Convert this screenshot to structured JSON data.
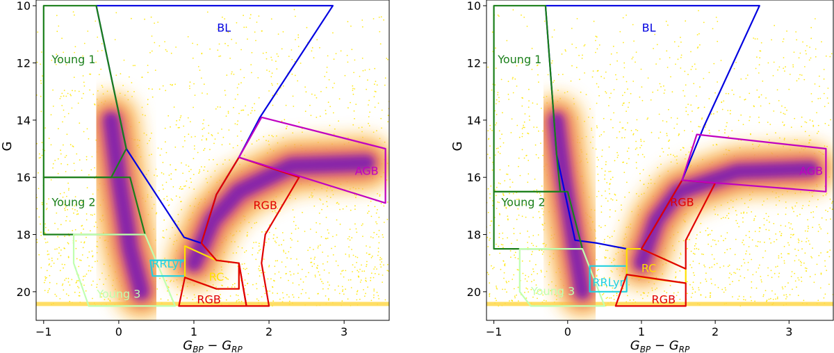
{
  "chart_data": [
    {
      "type": "scatter",
      "subtype": "density color-magnitude diagram with region polygons",
      "xlabel_main": "G",
      "xlabel_sub1": "BP",
      "xlabel_mid": " − G",
      "xlabel_sub2": "RP",
      "ylabel": "G",
      "xlim": [
        -1.1,
        3.6
      ],
      "ylim": [
        21.0,
        9.8
      ],
      "y_inverted": true,
      "xticks": [
        -1,
        0,
        1,
        2,
        3
      ],
      "yticks": [
        10,
        12,
        14,
        16,
        18,
        20
      ],
      "density_clouds": [
        {
          "name": "upper-main-sequence",
          "points": [
            [
              -0.1,
              14.0
            ],
            [
              0.0,
              16.0
            ],
            [
              0.15,
              18.5
            ],
            [
              0.3,
              20.0
            ]
          ],
          "width": 0.35
        },
        {
          "name": "giant-branch",
          "points": [
            [
              1.0,
              19.0
            ],
            [
              1.25,
              17.5
            ],
            [
              1.6,
              16.5
            ],
            [
              2.3,
              15.6
            ],
            [
              3.3,
              15.5
            ]
          ],
          "width": 0.35
        }
      ],
      "regions": [
        {
          "name": "BL",
          "color": "#0000e0",
          "label_pos": [
            1.4,
            10.8
          ],
          "polygon": [
            [
              -0.3,
              10.0
            ],
            [
              2.85,
              10.0
            ],
            [
              1.88,
              13.9
            ],
            [
              1.6,
              15.3
            ],
            [
              1.3,
              16.6
            ],
            [
              1.1,
              18.3
            ],
            [
              0.87,
              18.1
            ],
            [
              0.1,
              15.0
            ],
            [
              -0.3,
              10.0
            ]
          ]
        },
        {
          "name": "Young 1",
          "color": "#1a7f1a",
          "label_pos": [
            -0.6,
            11.9
          ],
          "polygon": [
            [
              -1.0,
              10.0
            ],
            [
              -0.3,
              10.0
            ],
            [
              0.1,
              15.0
            ],
            [
              -0.1,
              16.0
            ],
            [
              -1.0,
              16.0
            ]
          ]
        },
        {
          "name": "Young 2",
          "color": "#1a7f1a",
          "label_pos": [
            -0.6,
            16.9
          ],
          "polygon": [
            [
              -1.0,
              16.0
            ],
            [
              0.15,
              16.0
            ],
            [
              0.35,
              18.0
            ],
            [
              -1.0,
              18.0
            ]
          ]
        },
        {
          "name": "Young 3",
          "color": "#c0ffb0",
          "label_pos": [
            0.0,
            20.1
          ],
          "polygon": [
            [
              -0.6,
              18.0
            ],
            [
              0.35,
              18.0
            ],
            [
              0.75,
              20.5
            ],
            [
              -0.4,
              20.5
            ],
            [
              -0.6,
              19.0
            ]
          ]
        },
        {
          "name": "RRLyr",
          "color": "#20d0e0",
          "label_pos": [
            0.65,
            19.05
          ],
          "polygon": [
            [
              0.42,
              18.9
            ],
            [
              0.88,
              18.9
            ],
            [
              0.88,
              19.45
            ],
            [
              0.45,
              19.45
            ]
          ]
        },
        {
          "name": "RC",
          "color": "#ffe000",
          "label_pos": [
            1.3,
            19.5
          ],
          "polygon": [
            [
              0.88,
              18.4
            ],
            [
              1.3,
              18.9
            ],
            [
              1.6,
              19.0
            ],
            [
              1.6,
              19.9
            ],
            [
              1.3,
              19.9
            ],
            [
              0.88,
              19.5
            ]
          ]
        },
        {
          "name": "RGB",
          "color": "#e00000",
          "label_pos": [
            1.2,
            20.3
          ],
          "polygon": [
            [
              0.88,
              19.5
            ],
            [
              1.3,
              19.9
            ],
            [
              1.6,
              19.9
            ],
            [
              1.6,
              19.0
            ],
            [
              1.7,
              20.5
            ],
            [
              0.8,
              20.5
            ]
          ]
        },
        {
          "name": "RGB",
          "color": "#e00000",
          "label_pos": [
            1.95,
            17.0
          ],
          "polygon": [
            [
              1.1,
              18.3
            ],
            [
              1.3,
              16.6
            ],
            [
              1.6,
              15.3
            ],
            [
              2.4,
              16.0
            ],
            [
              1.95,
              18.0
            ],
            [
              1.9,
              19.0
            ],
            [
              2.0,
              20.5
            ],
            [
              1.7,
              20.5
            ],
            [
              1.6,
              19.0
            ],
            [
              1.3,
              18.9
            ]
          ]
        },
        {
          "name": "AGB",
          "color": "#c000c0",
          "label_pos": [
            3.3,
            15.8
          ],
          "polygon": [
            [
              1.6,
              15.3
            ],
            [
              1.9,
              13.9
            ],
            [
              3.55,
              15.0
            ],
            [
              3.55,
              16.9
            ]
          ]
        }
      ]
    },
    {
      "type": "scatter",
      "subtype": "density color-magnitude diagram with region polygons",
      "xlabel_main": "G",
      "xlabel_sub1": "BP",
      "xlabel_mid": " − G",
      "xlabel_sub2": "RP",
      "ylabel": "G",
      "xlim": [
        -1.1,
        3.6
      ],
      "ylim": [
        21.0,
        9.8
      ],
      "y_inverted": true,
      "xticks": [
        -1,
        0,
        1,
        2,
        3
      ],
      "yticks": [
        10,
        12,
        14,
        16,
        18,
        20
      ],
      "density_clouds": [
        {
          "name": "upper-main-sequence",
          "points": [
            [
              -0.15,
              14.0
            ],
            [
              -0.05,
              16.0
            ],
            [
              0.1,
              18.5
            ],
            [
              0.2,
              20.0
            ]
          ],
          "width": 0.33
        },
        {
          "name": "giant-branch",
          "points": [
            [
              1.0,
              19.0
            ],
            [
              1.2,
              17.5
            ],
            [
              1.5,
              16.5
            ],
            [
              2.3,
              15.8
            ],
            [
              3.3,
              15.7
            ]
          ],
          "width": 0.33
        }
      ],
      "regions": [
        {
          "name": "BL",
          "color": "#0000e0",
          "label_pos": [
            1.1,
            10.8
          ],
          "polygon": [
            [
              -0.3,
              10.0
            ],
            [
              2.6,
              10.0
            ],
            [
              1.85,
              14.2
            ],
            [
              1.55,
              16.1
            ],
            [
              1.0,
              18.5
            ],
            [
              0.8,
              18.5
            ],
            [
              0.4,
              18.3
            ],
            [
              0.1,
              18.2
            ],
            [
              -0.15,
              15.2
            ],
            [
              -0.3,
              10.0
            ]
          ]
        },
        {
          "name": "Young 1",
          "color": "#1a7f1a",
          "label_pos": [
            -0.65,
            11.9
          ],
          "polygon": [
            [
              -1.0,
              10.0
            ],
            [
              -0.3,
              10.0
            ],
            [
              -0.15,
              15.2
            ],
            [
              -0.1,
              16.5
            ],
            [
              -1.0,
              16.5
            ]
          ]
        },
        {
          "name": "Young 2",
          "color": "#1a7f1a",
          "label_pos": [
            -0.6,
            16.9
          ],
          "polygon": [
            [
              -1.0,
              16.5
            ],
            [
              0.0,
              16.5
            ],
            [
              0.2,
              18.5
            ],
            [
              -1.0,
              18.5
            ]
          ]
        },
        {
          "name": "Young 3",
          "color": "#c0ffb0",
          "label_pos": [
            -0.2,
            20.0
          ],
          "polygon": [
            [
              -0.65,
              18.5
            ],
            [
              0.2,
              18.5
            ],
            [
              0.5,
              20.5
            ],
            [
              -0.5,
              20.5
            ],
            [
              -0.65,
              20.0
            ]
          ]
        },
        {
          "name": "RRLyr",
          "color": "#20d0e0",
          "label_pos": [
            0.55,
            19.7
          ],
          "polygon": [
            [
              0.3,
              19.1
            ],
            [
              0.8,
              19.1
            ],
            [
              0.8,
              20.0
            ],
            [
              0.3,
              20.0
            ]
          ]
        },
        {
          "name": "RC",
          "color": "#ffe000",
          "label_pos": [
            1.1,
            19.2
          ],
          "polygon": [
            [
              0.8,
              18.5
            ],
            [
              1.0,
              18.5
            ],
            [
              1.6,
              19.2
            ],
            [
              1.6,
              19.7
            ],
            [
              1.0,
              19.5
            ],
            [
              0.8,
              19.4
            ]
          ]
        },
        {
          "name": "RGB",
          "color": "#e00000",
          "label_pos": [
            1.3,
            20.3
          ],
          "polygon": [
            [
              0.8,
              19.4
            ],
            [
              1.6,
              19.7
            ],
            [
              1.6,
              20.5
            ],
            [
              0.65,
              20.5
            ]
          ]
        },
        {
          "name": "RGB",
          "color": "#e00000",
          "label_pos": [
            1.55,
            16.9
          ],
          "polygon": [
            [
              1.0,
              18.5
            ],
            [
              1.55,
              16.1
            ],
            [
              2.0,
              16.2
            ],
            [
              1.6,
              18.2
            ],
            [
              1.6,
              19.2
            ]
          ]
        },
        {
          "name": "AGB",
          "color": "#c000c0",
          "label_pos": [
            3.3,
            15.8
          ],
          "polygon": [
            [
              1.55,
              16.1
            ],
            [
              1.75,
              14.5
            ],
            [
              3.5,
              15.0
            ],
            [
              3.5,
              16.5
            ]
          ]
        }
      ]
    }
  ]
}
